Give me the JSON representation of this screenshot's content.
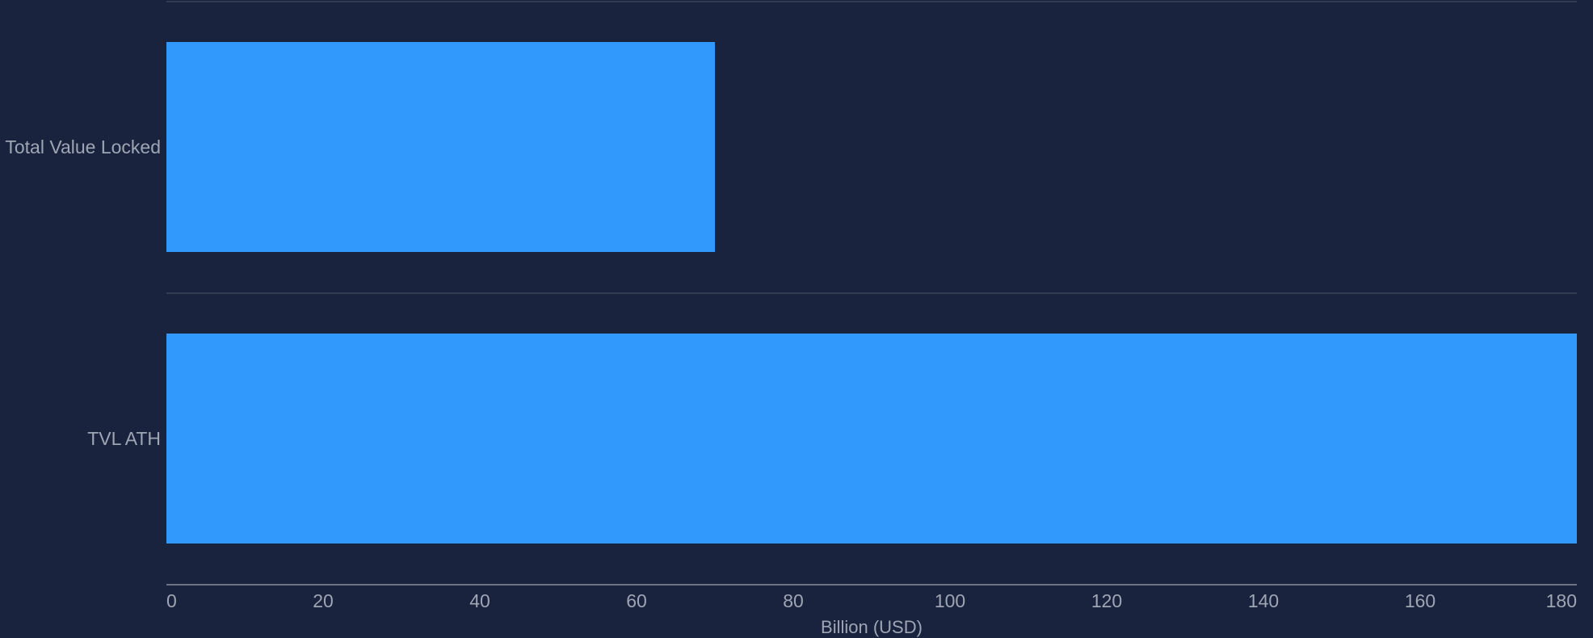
{
  "chart_data": {
    "type": "bar",
    "orientation": "horizontal",
    "categories": [
      "Total Value Locked",
      "TVL ATH"
    ],
    "values": [
      70,
      180
    ],
    "title": "",
    "xlabel": "Billion (USD)",
    "ylabel": "",
    "xlim": [
      0,
      180
    ],
    "xticks": [
      0,
      20,
      40,
      60,
      80,
      100,
      120,
      140,
      160,
      180
    ],
    "grid": true,
    "legend": "none",
    "colors": {
      "background": "#19233d",
      "bar": "#3198fc",
      "gridline": "#3a4356",
      "axis_line": "#6c7383",
      "text": "#9ea5b4"
    }
  }
}
